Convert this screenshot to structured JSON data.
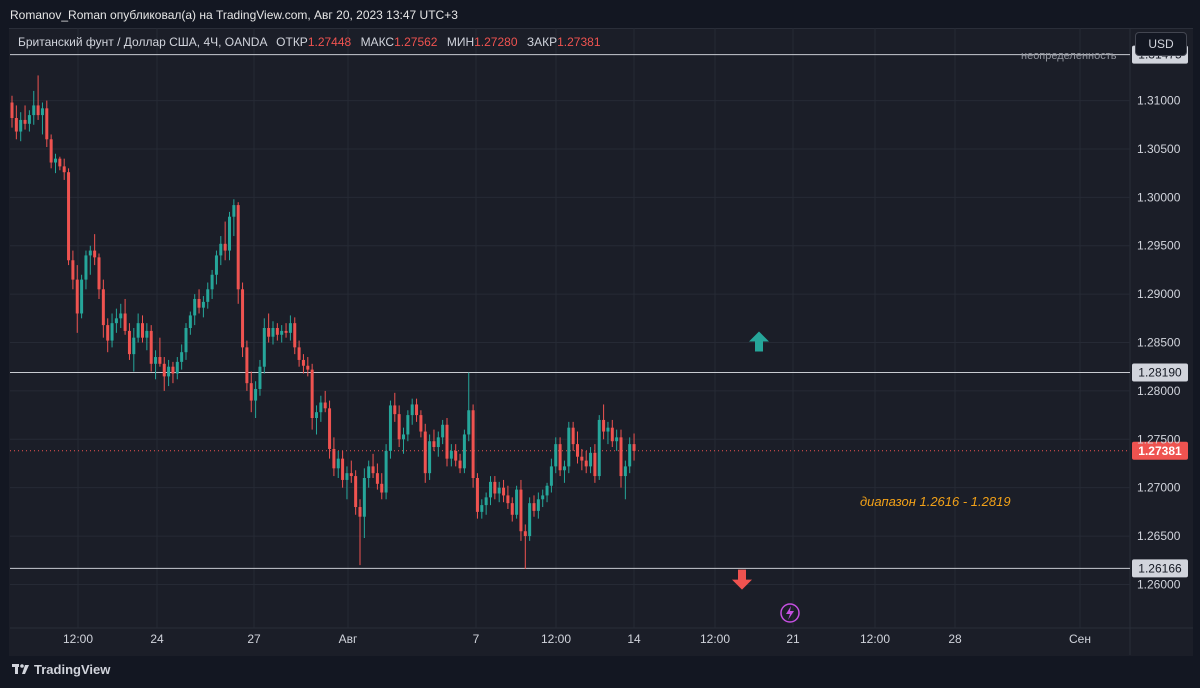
{
  "header": {
    "publish_line": "Romanov_Roman опубликовал(а) на TradingView.com, Авг 20, 2023 13:47 UTC+3"
  },
  "legend": {
    "symbol": "Британский фунт / Доллар США, 4Ч, OANDA",
    "open_label": "ОТКР",
    "open": "1.27448",
    "high_label": "МАКС",
    "high": "1.27562",
    "low_label": "МИН",
    "low": "1.27280",
    "close_label": "ЗАКР",
    "close": "1.27381"
  },
  "currency_button": "USD",
  "level_note": "неопределенность",
  "annotation": "диапазон 1.2616 - 1.2819",
  "footer": {
    "brand": "TradingView"
  },
  "colors": {
    "up": "#26a69a",
    "down": "#ef5350",
    "background": "#1b1e28",
    "annotation": "#f2a118",
    "lightning": "#c44fe0"
  },
  "chart_data": {
    "type": "candlestick",
    "ylim": [
      1.2555,
      1.3175
    ],
    "y_ticks": [
      "1.31000",
      "1.30500",
      "1.30000",
      "1.29500",
      "1.29000",
      "1.28500",
      "1.28000",
      "1.27500",
      "1.27000",
      "1.26500",
      "1.26000"
    ],
    "x_ticks": [
      "12:00",
      "24",
      "27",
      "Авг",
      "7",
      "12:00",
      "14",
      "12:00",
      "21",
      "12:00",
      "28",
      "Сен"
    ],
    "horizontal_levels": [
      {
        "price": 1.31475,
        "label": "1.31475"
      },
      {
        "price": 1.2819,
        "label": "1.28190"
      },
      {
        "price": 1.26166,
        "label": "1.26166"
      }
    ],
    "last_price": {
      "price": 1.27381,
      "label": "1.27381"
    },
    "arrows": [
      {
        "direction": "up",
        "price": 1.285
      },
      {
        "direction": "down",
        "price": 1.2606
      }
    ],
    "candles": [
      {
        "o": 1.3098,
        "h": 1.3105,
        "l": 1.3072,
        "c": 1.3082
      },
      {
        "o": 1.3082,
        "h": 1.3095,
        "l": 1.306,
        "c": 1.3068
      },
      {
        "o": 1.3068,
        "h": 1.3088,
        "l": 1.3058,
        "c": 1.308
      },
      {
        "o": 1.308,
        "h": 1.3095,
        "l": 1.307,
        "c": 1.3076
      },
      {
        "o": 1.3076,
        "h": 1.309,
        "l": 1.3068,
        "c": 1.3085
      },
      {
        "o": 1.3085,
        "h": 1.311,
        "l": 1.3075,
        "c": 1.3095
      },
      {
        "o": 1.3095,
        "h": 1.3126,
        "l": 1.308,
        "c": 1.3085
      },
      {
        "o": 1.3085,
        "h": 1.3098,
        "l": 1.3065,
        "c": 1.3092
      },
      {
        "o": 1.3092,
        "h": 1.31,
        "l": 1.3052,
        "c": 1.306
      },
      {
        "o": 1.306,
        "h": 1.3065,
        "l": 1.303,
        "c": 1.3036
      },
      {
        "o": 1.3036,
        "h": 1.3045,
        "l": 1.3025,
        "c": 1.304
      },
      {
        "o": 1.304,
        "h": 1.3042,
        "l": 1.3028,
        "c": 1.3032
      },
      {
        "o": 1.3032,
        "h": 1.304,
        "l": 1.3018,
        "c": 1.3026
      },
      {
        "o": 1.3026,
        "h": 1.303,
        "l": 1.293,
        "c": 1.2935
      },
      {
        "o": 1.2935,
        "h": 1.2945,
        "l": 1.2905,
        "c": 1.2915
      },
      {
        "o": 1.2915,
        "h": 1.293,
        "l": 1.286,
        "c": 1.288
      },
      {
        "o": 1.288,
        "h": 1.292,
        "l": 1.2875,
        "c": 1.2915
      },
      {
        "o": 1.2915,
        "h": 1.2945,
        "l": 1.2905,
        "c": 1.294
      },
      {
        "o": 1.294,
        "h": 1.295,
        "l": 1.292,
        "c": 1.2945
      },
      {
        "o": 1.2945,
        "h": 1.2962,
        "l": 1.293,
        "c": 1.2938
      },
      {
        "o": 1.2938,
        "h": 1.2942,
        "l": 1.2895,
        "c": 1.2905
      },
      {
        "o": 1.2905,
        "h": 1.2915,
        "l": 1.2855,
        "c": 1.2868
      },
      {
        "o": 1.2868,
        "h": 1.2875,
        "l": 1.284,
        "c": 1.2852
      },
      {
        "o": 1.2852,
        "h": 1.288,
        "l": 1.2845,
        "c": 1.287
      },
      {
        "o": 1.287,
        "h": 1.2885,
        "l": 1.286,
        "c": 1.2875
      },
      {
        "o": 1.2875,
        "h": 1.289,
        "l": 1.2865,
        "c": 1.288
      },
      {
        "o": 1.288,
        "h": 1.2895,
        "l": 1.2858,
        "c": 1.2862
      },
      {
        "o": 1.2862,
        "h": 1.287,
        "l": 1.2832,
        "c": 1.2838
      },
      {
        "o": 1.2838,
        "h": 1.2865,
        "l": 1.282,
        "c": 1.2855
      },
      {
        "o": 1.2855,
        "h": 1.288,
        "l": 1.285,
        "c": 1.287
      },
      {
        "o": 1.287,
        "h": 1.2878,
        "l": 1.285,
        "c": 1.2855
      },
      {
        "o": 1.2855,
        "h": 1.287,
        "l": 1.2842,
        "c": 1.2862
      },
      {
        "o": 1.2862,
        "h": 1.2868,
        "l": 1.282,
        "c": 1.2828
      },
      {
        "o": 1.2828,
        "h": 1.2842,
        "l": 1.2812,
        "c": 1.2835
      },
      {
        "o": 1.2835,
        "h": 1.2855,
        "l": 1.2825,
        "c": 1.2828
      },
      {
        "o": 1.2828,
        "h": 1.2835,
        "l": 1.28,
        "c": 1.2815
      },
      {
        "o": 1.2815,
        "h": 1.2832,
        "l": 1.2805,
        "c": 1.2825
      },
      {
        "o": 1.2825,
        "h": 1.283,
        "l": 1.2808,
        "c": 1.2818
      },
      {
        "o": 1.2818,
        "h": 1.2835,
        "l": 1.2812,
        "c": 1.283
      },
      {
        "o": 1.283,
        "h": 1.2848,
        "l": 1.2822,
        "c": 1.284
      },
      {
        "o": 1.284,
        "h": 1.287,
        "l": 1.2832,
        "c": 1.2865
      },
      {
        "o": 1.2865,
        "h": 1.2882,
        "l": 1.2858,
        "c": 1.2878
      },
      {
        "o": 1.2878,
        "h": 1.29,
        "l": 1.2868,
        "c": 1.2895
      },
      {
        "o": 1.2895,
        "h": 1.2905,
        "l": 1.288,
        "c": 1.2886
      },
      {
        "o": 1.2886,
        "h": 1.2898,
        "l": 1.2876,
        "c": 1.2892
      },
      {
        "o": 1.2892,
        "h": 1.2912,
        "l": 1.2885,
        "c": 1.2905
      },
      {
        "o": 1.2905,
        "h": 1.2925,
        "l": 1.2895,
        "c": 1.292
      },
      {
        "o": 1.292,
        "h": 1.2945,
        "l": 1.291,
        "c": 1.294
      },
      {
        "o": 1.294,
        "h": 1.296,
        "l": 1.293,
        "c": 1.2952
      },
      {
        "o": 1.2952,
        "h": 1.2975,
        "l": 1.2935,
        "c": 1.2945
      },
      {
        "o": 1.2945,
        "h": 1.2985,
        "l": 1.2935,
        "c": 1.298
      },
      {
        "o": 1.298,
        "h": 1.2998,
        "l": 1.296,
        "c": 1.2992
      },
      {
        "o": 1.2992,
        "h": 1.2995,
        "l": 1.289,
        "c": 1.2905
      },
      {
        "o": 1.2905,
        "h": 1.2912,
        "l": 1.2835,
        "c": 1.2845
      },
      {
        "o": 1.2845,
        "h": 1.2852,
        "l": 1.28,
        "c": 1.2808
      },
      {
        "o": 1.2808,
        "h": 1.282,
        "l": 1.2778,
        "c": 1.279
      },
      {
        "o": 1.279,
        "h": 1.281,
        "l": 1.2772,
        "c": 1.2802
      },
      {
        "o": 1.2802,
        "h": 1.2832,
        "l": 1.2795,
        "c": 1.2825
      },
      {
        "o": 1.2825,
        "h": 1.2875,
        "l": 1.2818,
        "c": 1.2865
      },
      {
        "o": 1.2865,
        "h": 1.288,
        "l": 1.285,
        "c": 1.2856
      },
      {
        "o": 1.2856,
        "h": 1.2872,
        "l": 1.2848,
        "c": 1.2865
      },
      {
        "o": 1.2865,
        "h": 1.287,
        "l": 1.2852,
        "c": 1.2858
      },
      {
        "o": 1.2858,
        "h": 1.2868,
        "l": 1.285,
        "c": 1.2862
      },
      {
        "o": 1.2862,
        "h": 1.287,
        "l": 1.2855,
        "c": 1.286
      },
      {
        "o": 1.286,
        "h": 1.2878,
        "l": 1.2852,
        "c": 1.287
      },
      {
        "o": 1.287,
        "h": 1.2876,
        "l": 1.2838,
        "c": 1.2845
      },
      {
        "o": 1.2845,
        "h": 1.2852,
        "l": 1.2825,
        "c": 1.2832
      },
      {
        "o": 1.2832,
        "h": 1.2838,
        "l": 1.2818,
        "c": 1.2826
      },
      {
        "o": 1.2826,
        "h": 1.2835,
        "l": 1.2815,
        "c": 1.2822
      },
      {
        "o": 1.2822,
        "h": 1.2828,
        "l": 1.276,
        "c": 1.2772
      },
      {
        "o": 1.2772,
        "h": 1.2785,
        "l": 1.2755,
        "c": 1.2778
      },
      {
        "o": 1.2778,
        "h": 1.2795,
        "l": 1.2768,
        "c": 1.2788
      },
      {
        "o": 1.2788,
        "h": 1.28,
        "l": 1.2778,
        "c": 1.2782
      },
      {
        "o": 1.2782,
        "h": 1.279,
        "l": 1.273,
        "c": 1.274
      },
      {
        "o": 1.274,
        "h": 1.2752,
        "l": 1.2712,
        "c": 1.272
      },
      {
        "o": 1.272,
        "h": 1.2738,
        "l": 1.271,
        "c": 1.273
      },
      {
        "o": 1.273,
        "h": 1.2738,
        "l": 1.27,
        "c": 1.2708
      },
      {
        "o": 1.2708,
        "h": 1.2722,
        "l": 1.2688,
        "c": 1.2715
      },
      {
        "o": 1.2715,
        "h": 1.2728,
        "l": 1.2705,
        "c": 1.2712
      },
      {
        "o": 1.2712,
        "h": 1.2718,
        "l": 1.2672,
        "c": 1.268
      },
      {
        "o": 1.268,
        "h": 1.2688,
        "l": 1.262,
        "c": 1.267
      },
      {
        "o": 1.267,
        "h": 1.272,
        "l": 1.2648,
        "c": 1.271
      },
      {
        "o": 1.271,
        "h": 1.2728,
        "l": 1.27,
        "c": 1.2722
      },
      {
        "o": 1.2722,
        "h": 1.2735,
        "l": 1.271,
        "c": 1.2715
      },
      {
        "o": 1.2715,
        "h": 1.2725,
        "l": 1.2698,
        "c": 1.2704
      },
      {
        "o": 1.2704,
        "h": 1.2715,
        "l": 1.2688,
        "c": 1.2695
      },
      {
        "o": 1.2695,
        "h": 1.2745,
        "l": 1.2688,
        "c": 1.2738
      },
      {
        "o": 1.2738,
        "h": 1.279,
        "l": 1.273,
        "c": 1.2785
      },
      {
        "o": 1.2785,
        "h": 1.2798,
        "l": 1.2768,
        "c": 1.2776
      },
      {
        "o": 1.2776,
        "h": 1.2785,
        "l": 1.2742,
        "c": 1.275
      },
      {
        "o": 1.275,
        "h": 1.2762,
        "l": 1.2735,
        "c": 1.2755
      },
      {
        "o": 1.2755,
        "h": 1.278,
        "l": 1.2748,
        "c": 1.2775
      },
      {
        "o": 1.2775,
        "h": 1.2792,
        "l": 1.2765,
        "c": 1.2786
      },
      {
        "o": 1.2786,
        "h": 1.2792,
        "l": 1.2768,
        "c": 1.2775
      },
      {
        "o": 1.2775,
        "h": 1.278,
        "l": 1.2752,
        "c": 1.2758
      },
      {
        "o": 1.2758,
        "h": 1.2766,
        "l": 1.2705,
        "c": 1.2715
      },
      {
        "o": 1.2715,
        "h": 1.2755,
        "l": 1.2708,
        "c": 1.2748
      },
      {
        "o": 1.2748,
        "h": 1.276,
        "l": 1.2738,
        "c": 1.2742
      },
      {
        "o": 1.2742,
        "h": 1.2758,
        "l": 1.2732,
        "c": 1.2752
      },
      {
        "o": 1.2752,
        "h": 1.277,
        "l": 1.2745,
        "c": 1.2765
      },
      {
        "o": 1.2765,
        "h": 1.2772,
        "l": 1.2722,
        "c": 1.273
      },
      {
        "o": 1.273,
        "h": 1.2745,
        "l": 1.2722,
        "c": 1.2738
      },
      {
        "o": 1.2738,
        "h": 1.2745,
        "l": 1.2722,
        "c": 1.2728
      },
      {
        "o": 1.2728,
        "h": 1.2735,
        "l": 1.2715,
        "c": 1.272
      },
      {
        "o": 1.272,
        "h": 1.276,
        "l": 1.2715,
        "c": 1.2755
      },
      {
        "o": 1.2755,
        "h": 1.2819,
        "l": 1.2748,
        "c": 1.278
      },
      {
        "o": 1.278,
        "h": 1.2786,
        "l": 1.27,
        "c": 1.271
      },
      {
        "o": 1.271,
        "h": 1.2715,
        "l": 1.2668,
        "c": 1.2675
      },
      {
        "o": 1.2675,
        "h": 1.2688,
        "l": 1.2668,
        "c": 1.2682
      },
      {
        "o": 1.2682,
        "h": 1.2695,
        "l": 1.2672,
        "c": 1.269
      },
      {
        "o": 1.269,
        "h": 1.2712,
        "l": 1.2682,
        "c": 1.2706
      },
      {
        "o": 1.2706,
        "h": 1.2712,
        "l": 1.2688,
        "c": 1.2694
      },
      {
        "o": 1.2694,
        "h": 1.2706,
        "l": 1.2685,
        "c": 1.27
      },
      {
        "o": 1.27,
        "h": 1.2708,
        "l": 1.2685,
        "c": 1.2692
      },
      {
        "o": 1.2692,
        "h": 1.2702,
        "l": 1.2678,
        "c": 1.2684
      },
      {
        "o": 1.2684,
        "h": 1.269,
        "l": 1.2665,
        "c": 1.2672
      },
      {
        "o": 1.2672,
        "h": 1.2702,
        "l": 1.2668,
        "c": 1.2698
      },
      {
        "o": 1.2698,
        "h": 1.2708,
        "l": 1.2645,
        "c": 1.2655
      },
      {
        "o": 1.2655,
        "h": 1.2662,
        "l": 1.2616,
        "c": 1.265
      },
      {
        "o": 1.265,
        "h": 1.269,
        "l": 1.2645,
        "c": 1.2684
      },
      {
        "o": 1.2684,
        "h": 1.2692,
        "l": 1.267,
        "c": 1.2676
      },
      {
        "o": 1.2676,
        "h": 1.2695,
        "l": 1.2668,
        "c": 1.2688
      },
      {
        "o": 1.2688,
        "h": 1.2698,
        "l": 1.268,
        "c": 1.2692
      },
      {
        "o": 1.2692,
        "h": 1.2705,
        "l": 1.2685,
        "c": 1.2702
      },
      {
        "o": 1.2702,
        "h": 1.273,
        "l": 1.2695,
        "c": 1.2722
      },
      {
        "o": 1.2722,
        "h": 1.2752,
        "l": 1.2715,
        "c": 1.2745
      },
      {
        "o": 1.2745,
        "h": 1.2752,
        "l": 1.2712,
        "c": 1.2718
      },
      {
        "o": 1.2718,
        "h": 1.2728,
        "l": 1.2705,
        "c": 1.2722
      },
      {
        "o": 1.2722,
        "h": 1.2768,
        "l": 1.2715,
        "c": 1.2762
      },
      {
        "o": 1.2762,
        "h": 1.2768,
        "l": 1.2738,
        "c": 1.2745
      },
      {
        "o": 1.2745,
        "h": 1.2758,
        "l": 1.2725,
        "c": 1.2732
      },
      {
        "o": 1.2732,
        "h": 1.274,
        "l": 1.2718,
        "c": 1.2728
      },
      {
        "o": 1.2728,
        "h": 1.2738,
        "l": 1.2715,
        "c": 1.2722
      },
      {
        "o": 1.2722,
        "h": 1.2742,
        "l": 1.2715,
        "c": 1.2736
      },
      {
        "o": 1.2736,
        "h": 1.2745,
        "l": 1.2705,
        "c": 1.2712
      },
      {
        "o": 1.2712,
        "h": 1.2775,
        "l": 1.2708,
        "c": 1.277
      },
      {
        "o": 1.277,
        "h": 1.2786,
        "l": 1.275,
        "c": 1.2758
      },
      {
        "o": 1.2758,
        "h": 1.2768,
        "l": 1.2745,
        "c": 1.2762
      },
      {
        "o": 1.2762,
        "h": 1.277,
        "l": 1.2742,
        "c": 1.2748
      },
      {
        "o": 1.2748,
        "h": 1.276,
        "l": 1.2738,
        "c": 1.2752
      },
      {
        "o": 1.2752,
        "h": 1.276,
        "l": 1.27,
        "c": 1.2712
      },
      {
        "o": 1.2712,
        "h": 1.2728,
        "l": 1.2688,
        "c": 1.2722
      },
      {
        "o": 1.2722,
        "h": 1.2752,
        "l": 1.2715,
        "c": 1.2745
      },
      {
        "o": 1.2745,
        "h": 1.2756,
        "l": 1.2728,
        "c": 1.2738
      }
    ]
  }
}
